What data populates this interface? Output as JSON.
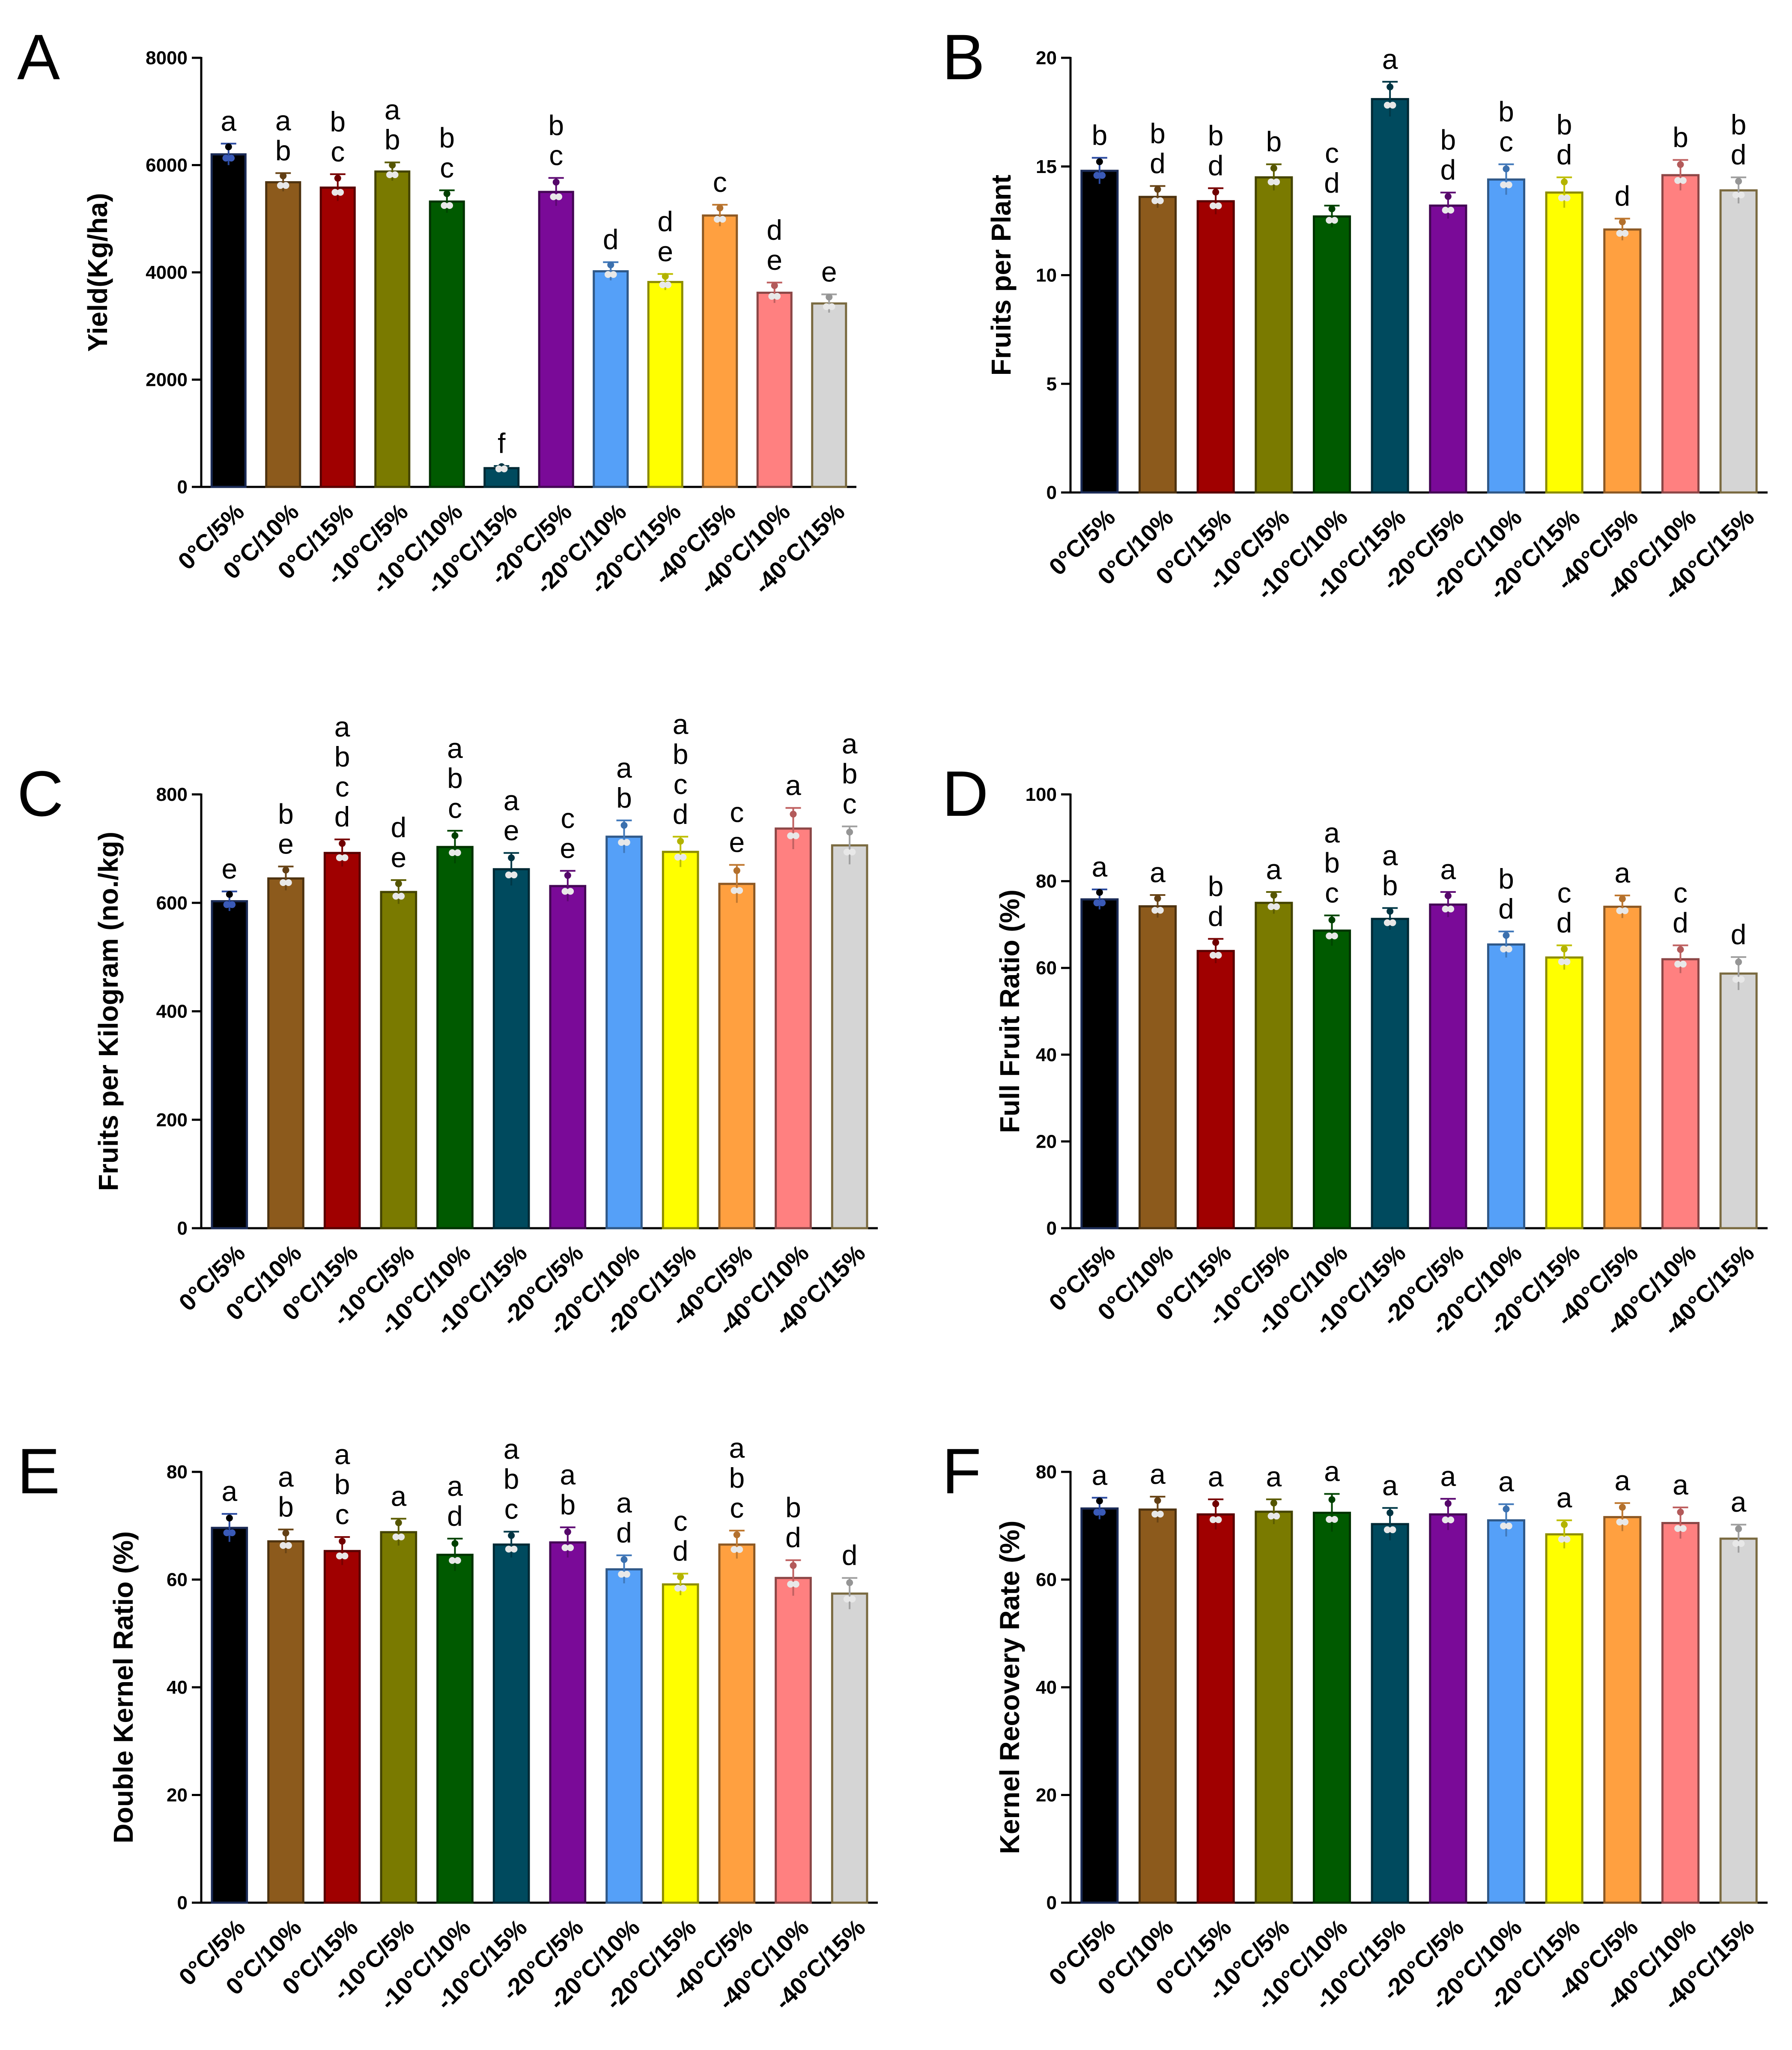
{
  "colors": [
    "#000000",
    "#8C5A1C",
    "#A00000",
    "#7A7A00",
    "#005A00",
    "#004A5E",
    "#7A0A98",
    "#55A0F8",
    "#FFFF00",
    "#FFA040",
    "#FF8080",
    "#D5D5D5"
  ],
  "chart_data": [
    {
      "panel": "A",
      "type": "bar",
      "ylabel": "Yield(Kg/ha)",
      "ylim": [
        0,
        8000
      ],
      "yticks": [
        0,
        2000,
        4000,
        6000,
        8000
      ],
      "categories": [
        "0°C/5%",
        "0°C/10%",
        "0°C/15%",
        "-10°C/5%",
        "-10°C/10%",
        "-10°C/15%",
        "-20°C/5%",
        "-20°C/10%",
        "-20°C/15%",
        "-40°C/5%",
        "-40°C/10%",
        "-40°C/15%"
      ],
      "values": [
        6200,
        5680,
        5580,
        5880,
        5320,
        350,
        5500,
        4020,
        3820,
        5060,
        3620,
        3420
      ],
      "errors": [
        200,
        170,
        250,
        170,
        210,
        40,
        260,
        170,
        150,
        200,
        190,
        170
      ],
      "letters": [
        "a",
        "a\nb",
        "b\nc",
        "a\nb",
        "b\nc",
        "f",
        "b\nc",
        "d",
        "d\ne",
        "c",
        "d\ne",
        "e"
      ]
    },
    {
      "panel": "B",
      "type": "bar",
      "ylabel": "Fruits per Plant",
      "ylim": [
        0,
        20
      ],
      "yticks": [
        0,
        5,
        10,
        15,
        20
      ],
      "categories": [
        "0°C/5%",
        "0°C/10%",
        "0°C/15%",
        "-10°C/5%",
        "-10°C/10%",
        "-10°C/15%",
        "-20°C/5%",
        "-20°C/10%",
        "-20°C/15%",
        "-40°C/5%",
        "-40°C/10%",
        "-40°C/15%"
      ],
      "values": [
        14.8,
        13.6,
        13.4,
        14.5,
        12.7,
        18.1,
        13.2,
        14.4,
        13.8,
        12.1,
        14.6,
        13.9
      ],
      "errors": [
        0.6,
        0.5,
        0.6,
        0.6,
        0.5,
        0.8,
        0.6,
        0.7,
        0.7,
        0.5,
        0.7,
        0.6
      ],
      "letters": [
        "b",
        "b\nd",
        "b\nd",
        "b",
        "c\nd",
        "a",
        "b\nd",
        "b\nc",
        "b\nd",
        "d",
        "b",
        "b\nd"
      ]
    },
    {
      "panel": "C",
      "type": "bar",
      "ylabel": "Fruits per Kilogram (no./kg)",
      "ylim": [
        0,
        800
      ],
      "yticks": [
        0,
        200,
        400,
        600,
        800
      ],
      "categories": [
        "0°C/5%",
        "0°C/10%",
        "0°C/15%",
        "-10°C/5%",
        "-10°C/10%",
        "-10°C/15%",
        "-20°C/5%",
        "-20°C/10%",
        "-20°C/15%",
        "-40°C/5%",
        "-40°C/10%",
        "-40°C/15%"
      ],
      "values": [
        603,
        645,
        692,
        620,
        703,
        662,
        631,
        722,
        694,
        635,
        737,
        706
      ],
      "errors": [
        18,
        22,
        25,
        22,
        30,
        30,
        28,
        30,
        28,
        35,
        38,
        35
      ],
      "letters": [
        "e",
        "b\ne",
        "a\nb\nc\nd",
        "d\ne",
        "a\nb\nc",
        "a\ne",
        "c\ne",
        "a\nb",
        "a\nb\nc\nd",
        "c\ne",
        "a",
        "a\nb\nc"
      ]
    },
    {
      "panel": "D",
      "type": "bar",
      "ylabel": "Full Fruit Ratio (%)",
      "ylim": [
        0,
        100
      ],
      "yticks": [
        0,
        20,
        40,
        60,
        80,
        100
      ],
      "categories": [
        "0°C/5%",
        "0°C/10%",
        "0°C/15%",
        "-10°C/5%",
        "-10°C/10%",
        "-10°C/15%",
        "-20°C/5%",
        "-20°C/10%",
        "-20°C/15%",
        "-40°C/5%",
        "-40°C/10%",
        "-40°C/15%"
      ],
      "values": [
        75.8,
        74.2,
        63.9,
        75.0,
        68.6,
        71.3,
        74.6,
        65.4,
        62.4,
        74.1,
        62.0,
        58.7
      ],
      "errors": [
        2.3,
        2.6,
        2.8,
        2.5,
        3.5,
        2.5,
        2.9,
        3.0,
        2.8,
        2.6,
        3.2,
        3.8
      ],
      "letters": [
        "a",
        "a",
        "b\nd",
        "a",
        "a\nb\nc",
        "a\nb",
        "a",
        "b\nd",
        "c\nd",
        "a",
        "c\nd",
        "d"
      ]
    },
    {
      "panel": "E",
      "type": "bar",
      "ylabel": "Double Kernel Ratio (%)",
      "ylim": [
        0,
        80
      ],
      "yticks": [
        0,
        20,
        40,
        60,
        80
      ],
      "categories": [
        "0°C/5%",
        "0°C/10%",
        "0°C/15%",
        "-10°C/5%",
        "-10°C/10%",
        "-10°C/15%",
        "-20°C/5%",
        "-20°C/10%",
        "-20°C/15%",
        "-40°C/5%",
        "-40°C/10%",
        "-40°C/15%"
      ],
      "values": [
        69.6,
        67.1,
        65.3,
        68.8,
        64.6,
        66.5,
        66.9,
        61.9,
        59.1,
        66.5,
        60.3,
        57.4
      ],
      "errors": [
        2.6,
        2.2,
        2.6,
        2.5,
        3.0,
        2.4,
        2.8,
        2.6,
        2.0,
        2.6,
        3.3,
        2.9
      ],
      "letters": [
        "a",
        "a\nb",
        "a\nb\nc",
        "a",
        "a\nd",
        "a\nb\nc",
        "a\nb",
        "a\nd",
        "c\nd",
        "a\nb\nc",
        "b\nd",
        "d"
      ]
    },
    {
      "panel": "F",
      "type": "bar",
      "ylabel": "Kernel Recovery Rate (%)",
      "ylim": [
        0,
        80
      ],
      "yticks": [
        0,
        20,
        40,
        60,
        80
      ],
      "categories": [
        "0°C/5%",
        "0°C/10%",
        "0°C/15%",
        "-10°C/5%",
        "-10°C/10%",
        "-10°C/15%",
        "-20°C/5%",
        "-20°C/10%",
        "-20°C/15%",
        "-40°C/5%",
        "-40°C/10%",
        "-40°C/15%"
      ],
      "values": [
        73.2,
        73.0,
        72.1,
        72.6,
        72.4,
        70.3,
        72.1,
        71.0,
        68.4,
        71.6,
        70.5,
        67.6
      ],
      "errors": [
        2.0,
        2.4,
        2.8,
        2.3,
        3.5,
        3.0,
        2.9,
        3.0,
        2.6,
        2.6,
        2.9,
        2.6
      ],
      "letters": [
        "a",
        "a",
        "a",
        "a",
        "a",
        "a",
        "a",
        "a",
        "a",
        "a",
        "a",
        "a"
      ]
    }
  ]
}
